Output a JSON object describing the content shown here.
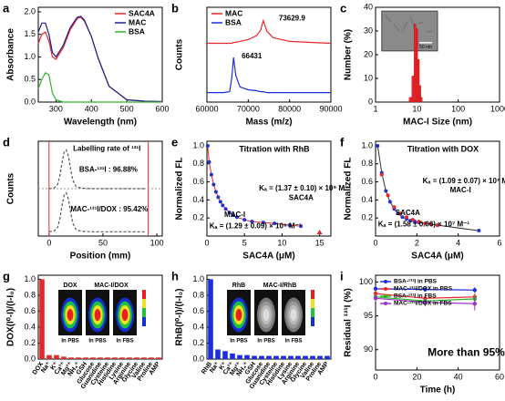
{
  "chart_data": [
    {
      "panel": "a",
      "type": "line",
      "xlabel": "Wavelength (nm)",
      "ylabel": "Absorbance",
      "x": [
        250,
        260,
        270,
        280,
        290,
        300,
        320,
        340,
        360,
        370,
        380,
        400,
        420,
        450,
        500,
        550,
        600
      ],
      "series": [
        {
          "name": "SAC4A",
          "color": "#e8262a",
          "values": [
            1.3,
            1.5,
            1.55,
            1.35,
            1.0,
            0.95,
            1.2,
            1.6,
            1.85,
            1.88,
            1.8,
            1.45,
            0.95,
            0.35,
            0.05,
            0.02,
            0.01
          ]
        },
        {
          "name": "MAC",
          "color": "#1f1f8f",
          "values": [
            1.55,
            1.75,
            1.75,
            1.5,
            1.1,
            1.0,
            1.25,
            1.65,
            1.88,
            1.9,
            1.82,
            1.45,
            0.95,
            0.35,
            0.05,
            0.02,
            0.01
          ]
        },
        {
          "name": "BSA",
          "color": "#2bb52b",
          "values": [
            0.3,
            0.5,
            0.65,
            0.6,
            0.2,
            0.05,
            0,
            0,
            0,
            0,
            0,
            0,
            0,
            0,
            0,
            0,
            0
          ]
        }
      ],
      "xlim": [
        250,
        600
      ],
      "xticks": [
        300,
        400,
        500,
        600
      ],
      "ylim": [
        0,
        2.1
      ],
      "yticks": [
        {
          "value": 0,
          "label": "0.0"
        },
        0.5,
        {
          "value": 1,
          "label": "1.0"
        },
        1.5,
        {
          "value": 2,
          "label": "2.0"
        }
      ],
      "legend": "upper right"
    },
    {
      "panel": "b",
      "type": "line",
      "xlabel": "Mass (m/z)",
      "ylabel": "Counts",
      "x": [
        60000,
        62000,
        64000,
        65500,
        66000,
        66431,
        67000,
        68000,
        70000,
        72000,
        73000,
        73630,
        74500,
        76000,
        80000,
        85000,
        90000
      ],
      "series": [
        {
          "name": "MAC",
          "color": "#e8262a",
          "values": [
            6.2,
            6.2,
            6.2,
            6.2,
            6.2,
            6.3,
            6.3,
            6.4,
            6.6,
            7.0,
            7.6,
            8.6,
            7.5,
            6.8,
            6.4,
            6.3,
            6.2
          ]
        },
        {
          "name": "BSA",
          "color": "#1a2ee0",
          "values": [
            1.0,
            1.0,
            1.0,
            1.1,
            2.5,
            4.7,
            2.8,
            1.6,
            1.3,
            1.2,
            1.1,
            1.1,
            1.0,
            1.0,
            1.0,
            1.0,
            1.0
          ]
        }
      ],
      "xlim": [
        60000,
        90000
      ],
      "xticks": [
        60000,
        70000,
        80000,
        90000
      ],
      "ylim": [
        0,
        10
      ],
      "legend": "upper left",
      "annotations": [
        {
          "text": "73629.9",
          "color": "#000000"
        },
        {
          "text": "66431",
          "color": "#000000"
        }
      ]
    },
    {
      "panel": "c",
      "type": "histogram",
      "xlabel": "MAC-I Size (nm)",
      "ylabel": "Number (%)",
      "bins": [
        6.5,
        7.5,
        8.5,
        9.5,
        10.5,
        11.5,
        12.5,
        13.5
      ],
      "counts": [
        2,
        11,
        33,
        31,
        18,
        7,
        2
      ],
      "color": "#e8262a",
      "xlog": true,
      "xlim": [
        1,
        1000
      ],
      "xticks": [
        1,
        10,
        100,
        1000
      ],
      "ylim": [
        0,
        40
      ],
      "yticks": [
        0,
        10,
        20,
        30,
        40
      ],
      "inset_label": "50 nm"
    },
    {
      "panel": "d",
      "type": "line",
      "xlabel": "Position (mm)",
      "ylabel": "Counts",
      "x": [
        0,
        5,
        8,
        10,
        12,
        14,
        16,
        18,
        20,
        22,
        25,
        30,
        40,
        60,
        90
      ],
      "series": [
        {
          "color": "#555555",
          "dash": true,
          "values": [
            1.0,
            1.02,
            1.1,
            1.3,
            1.6,
            1.85,
            1.9,
            1.75,
            1.45,
            1.2,
            1.05,
            1.01,
            1.0,
            1.0,
            1.0
          ]
        },
        {
          "color": "#555555",
          "dash": true,
          "values": [
            0.0,
            0.02,
            0.1,
            0.3,
            0.6,
            0.85,
            0.9,
            0.75,
            0.45,
            0.2,
            0.05,
            0.01,
            0,
            0,
            0
          ]
        }
      ],
      "vlines": [
        0,
        92
      ],
      "vline_color": "#e8262a",
      "xlim": [
        -10,
        105
      ],
      "xticks": [
        0,
        50,
        100
      ],
      "ylim": [
        -0.1,
        2.1
      ],
      "annotations": [
        {
          "text": "Labelling rate of ¹³¹I",
          "color": "#000000"
        },
        {
          "text": "BSA-¹³¹I : 96.88%",
          "color": "#000000"
        },
        {
          "text": "MAC-¹³¹I/DOX : 95.42%",
          "color": "#000000"
        }
      ]
    },
    {
      "panel": "e",
      "type": "scatter",
      "title": "Titration with RhB",
      "xlabel": "SAC4A (μM)",
      "ylabel": "Normalized FL",
      "series": [
        {
          "name": "MAC-I",
          "color": "#2233cc",
          "marker": "circle",
          "line_color": "#e8262a",
          "x": [
            0.1,
            0.3,
            0.6,
            0.9,
            1.2,
            1.5,
            1.8,
            2.1,
            2.5,
            3,
            3.5,
            4,
            5,
            6,
            7.5,
            9,
            11,
            12.5
          ],
          "values": [
            1.0,
            0.82,
            0.68,
            0.57,
            0.49,
            0.43,
            0.38,
            0.34,
            0.3,
            0.26,
            0.23,
            0.21,
            0.18,
            0.16,
            0.15,
            0.14,
            0.12,
            0.11
          ]
        },
        {
          "name": "SAC4A",
          "color": "#e8262a",
          "marker": "triangle",
          "x": [
            15
          ],
          "values": [
            0.04
          ]
        }
      ],
      "xlim": [
        0,
        16.5
      ],
      "xticks": [
        0,
        5,
        10,
        15
      ],
      "ylim": [
        0,
        1.05
      ],
      "yticks": [
        0.2,
        0.4,
        0.6,
        0.8,
        {
          "value": 1,
          "label": "1.0"
        }
      ],
      "annotations": [
        {
          "text": "Kₐ = (1.37 ± 0.10) × 10⁹ M⁻¹",
          "color": "#e8262a"
        },
        {
          "text": "Kₐ = (1.29 ± 0.09) × 10⁸ M⁻¹",
          "color": "#2233cc"
        }
      ]
    },
    {
      "panel": "f",
      "type": "scatter",
      "title": "Titration with DOX",
      "xlabel": "SAC4A (μM)",
      "ylabel": "Normalized FL",
      "series": [
        {
          "name": "MAC-I",
          "color": "#2233cc",
          "marker": "circle",
          "line_color": "#333333",
          "x": [
            0.1,
            0.3,
            0.5,
            0.7,
            0.9,
            1.1,
            1.3,
            1.5,
            1.7,
            1.9,
            2.1,
            2.4,
            2.7,
            3.0,
            5.0
          ],
          "values": [
            1.0,
            0.7,
            0.5,
            0.38,
            0.3,
            0.25,
            0.21,
            0.19,
            0.17,
            0.16,
            0.15,
            0.14,
            0.13,
            0.12,
            0.06
          ]
        },
        {
          "name": "SAC4A",
          "color": "#e8262a",
          "marker": "circle",
          "x": [
            0.3,
            0.6,
            0.9,
            1.2,
            1.5,
            1.8,
            2.1,
            2.4,
            2.7,
            3.0
          ],
          "values": [
            0.68,
            0.45,
            0.32,
            0.25,
            0.21,
            0.18,
            0.16,
            0.14,
            0.13,
            0.12
          ]
        }
      ],
      "xlim": [
        0,
        6
      ],
      "xticks": [
        0,
        2,
        4,
        6
      ],
      "ylim": [
        0,
        1.05
      ],
      "yticks": [
        0.2,
        0.4,
        0.6,
        0.8,
        {
          "value": 1,
          "label": "1.0"
        }
      ],
      "annotations": [
        {
          "text": "Kₐ = (1.09 ± 0.07) × 10⁷ M⁻¹",
          "color": "#2233cc"
        },
        {
          "text": "Kₐ = (1.58 ± 0.06) × 10⁷ M⁻¹",
          "color": "#e8262a"
        }
      ]
    },
    {
      "panel": "g",
      "type": "bar",
      "ylabel": "DOX(I⁰-I)/(I-I₀)",
      "color": "#e8262a",
      "categories": [
        "DOX",
        "Na⁺",
        "K⁺",
        "Ca²⁺",
        "Mg²⁺",
        "NH₄⁺",
        "GSH",
        "Glucose",
        "Guanidine",
        "Cysteine",
        "Histidine",
        "Lysine",
        "Arginine",
        "Glycine",
        "Valine",
        "Proline",
        "AMP"
      ],
      "values": [
        1.0,
        0.05,
        0.05,
        0.03,
        0.02,
        0.02,
        0.02,
        0.02,
        0.02,
        0.02,
        0.02,
        0.02,
        0.02,
        0.02,
        0.02,
        0.02,
        0.02
      ],
      "ylim": [
        0,
        1.05
      ],
      "yticks": [
        {
          "value": 0,
          "label": "0.0"
        },
        0.2,
        0.4,
        0.6,
        0.8,
        {
          "value": 1,
          "label": "1.0"
        }
      ],
      "inset_labels": {
        "titles": [
          "DOX",
          "MAC-I/DOX"
        ],
        "conditions": [
          "In PBS",
          "In PBS",
          "In FBS"
        ]
      }
    },
    {
      "panel": "h",
      "type": "bar",
      "ylabel": "RhB(I⁰-I)/(I-I₀)",
      "color": "#1a2ee0",
      "categories": [
        "RhB",
        "Na⁺",
        "K⁺",
        "Ca²⁺",
        "Mg²⁺",
        "NH₄⁺",
        "GSH",
        "Glucose",
        "Guanidine",
        "Cysteine",
        "Histidine",
        "Lysine",
        "Arginine",
        "Glycine",
        "Valine",
        "Proline",
        "AMP"
      ],
      "values": [
        1.0,
        0.12,
        0.1,
        0.07,
        0.05,
        0.05,
        0.04,
        0.04,
        0.04,
        0.04,
        0.04,
        0.04,
        0.04,
        0.04,
        0.04,
        0.04,
        0.04
      ],
      "ylim": [
        0,
        1.05
      ],
      "yticks": [
        {
          "value": 0,
          "label": "0.0"
        },
        0.2,
        0.4,
        0.6,
        0.8,
        {
          "value": 1,
          "label": "1.0"
        }
      ],
      "inset_labels": {
        "titles": [
          "RhB",
          "MAC-I/RhB"
        ],
        "conditions": [
          "In PBS",
          "In PBS",
          "In FBS"
        ]
      }
    },
    {
      "panel": "i",
      "type": "line",
      "xlabel": "Time (h)",
      "ylabel": "Residual ¹³¹I (%)",
      "x": [
        0,
        24,
        48
      ],
      "series": [
        {
          "name": "BSA-¹³¹I in PBS",
          "color": "#1a2ee0",
          "values": [
            99.0,
            98.9,
            98.8
          ],
          "errors": [
            0.3,
            0.3,
            0.4
          ]
        },
        {
          "name": "MAC-¹³¹I/DOX in PBS",
          "color": "#e8262a",
          "values": [
            98.3,
            97.6,
            97.8
          ],
          "errors": [
            0.4,
            0.5,
            0.5
          ]
        },
        {
          "name": "BSA-¹³¹I in FBS",
          "color": "#2bb52b",
          "values": [
            97.8,
            97.2,
            97.5
          ],
          "errors": [
            0.4,
            0.5,
            0.6
          ]
        },
        {
          "name": "MAC-¹³¹I/DOX in FBS",
          "color": "#9b30c8",
          "values": [
            97.6,
            97.0,
            96.8
          ],
          "errors": [
            0.5,
            0.6,
            1.0
          ]
        }
      ],
      "xlim": [
        0,
        60
      ],
      "xticks": [
        0,
        20,
        40,
        60
      ],
      "ylim": [
        87,
        101
      ],
      "yticks": [
        90,
        95,
        100
      ],
      "legend": "upper left",
      "annotations": [
        {
          "text": "More than 95%",
          "color": "#e8262a"
        }
      ]
    }
  ]
}
